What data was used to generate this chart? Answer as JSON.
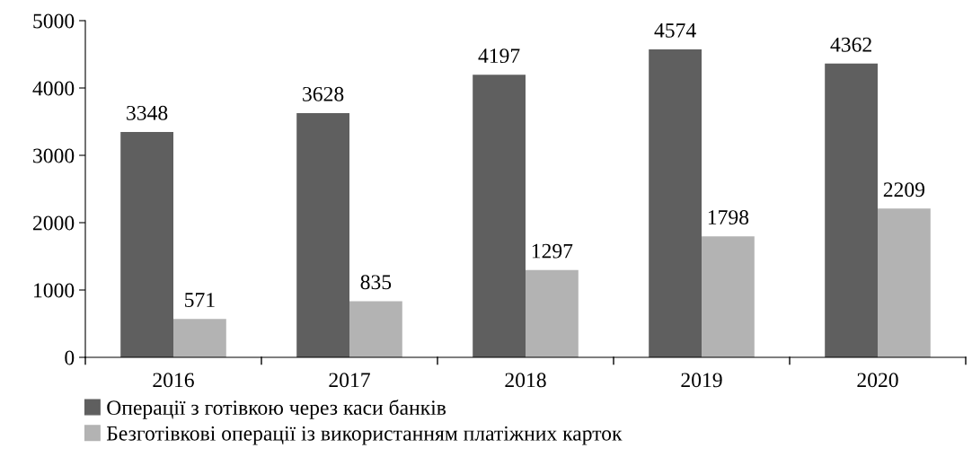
{
  "chart_data": {
    "type": "bar",
    "categories": [
      "2016",
      "2017",
      "2018",
      "2019",
      "2020"
    ],
    "series": [
      {
        "name": "Операції з готівкою через каси банків",
        "color": "#5f5f5f",
        "values": [
          3348,
          3628,
          4197,
          4574,
          4362
        ]
      },
      {
        "name": "Безготівкові операції із використанням платіжних карток",
        "color": "#b3b3b3",
        "values": [
          571,
          835,
          1297,
          1798,
          2209
        ]
      }
    ],
    "ylim": [
      0,
      5000
    ],
    "yticks": [
      0,
      1000,
      2000,
      3000,
      4000,
      5000
    ],
    "grid": false,
    "legend": "bottom left",
    "data_labels": true
  }
}
